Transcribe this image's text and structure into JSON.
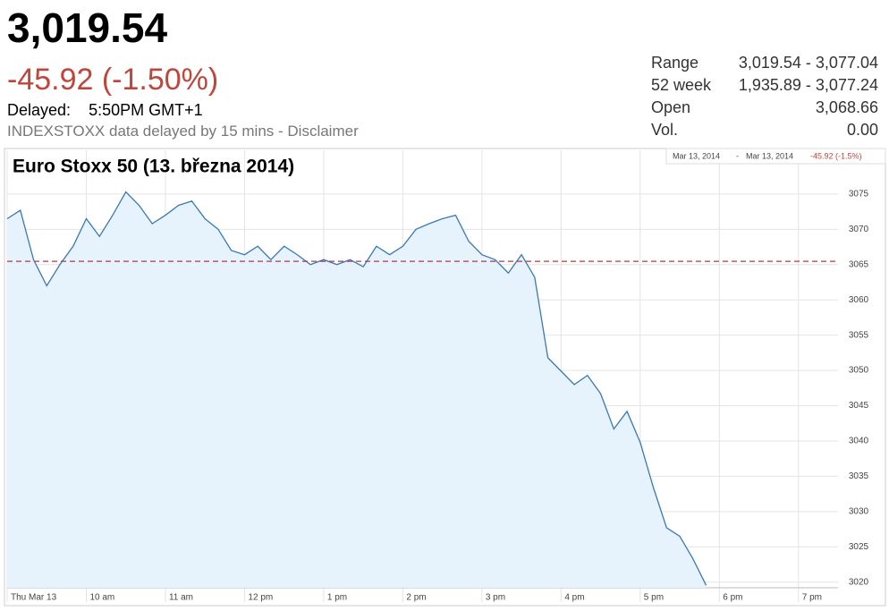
{
  "header": {
    "price": "3,019.54",
    "change": "-45.92 (-1.50%)",
    "delayed_label": "Delayed:",
    "delayed_time": "5:50PM GMT+1",
    "source": "INDEXSTOXX data delayed by 15 mins - Disclaimer"
  },
  "stats": [
    {
      "label": "Range",
      "value": "3,019.54 - 3,077.04"
    },
    {
      "label": "52 week",
      "value": "1,935.89 - 3,077.24"
    },
    {
      "label": "Open",
      "value": "3,068.66"
    },
    {
      "label": "Vol.",
      "value": "0.00"
    }
  ],
  "chart_data": {
    "type": "line",
    "title": "Euro Stoxx 50 (13. března 2014)",
    "range_box": {
      "from": "Mar 13, 2014",
      "separator": "-",
      "to": "Mar 13, 2014",
      "change": "-45.92 (-1.5%)"
    },
    "categories": [
      "Thu Mar 13",
      null,
      null,
      null,
      null,
      null,
      "10 am",
      null,
      null,
      null,
      null,
      null,
      "11 am",
      null,
      null,
      null,
      null,
      null,
      "12 pm",
      null,
      null,
      null,
      null,
      null,
      "1 pm",
      null,
      null,
      null,
      null,
      null,
      "2 pm",
      null,
      null,
      null,
      null,
      null,
      "3 pm",
      null,
      null,
      null,
      null,
      null,
      "4 pm",
      null,
      null,
      null,
      null,
      null,
      "5 pm",
      null,
      null,
      null,
      null,
      null,
      "6 pm",
      null,
      null,
      null,
      null,
      null,
      "7 pm",
      null,
      null,
      null
    ],
    "series": [
      {
        "color": "#3b78b5",
        "fill": "#e6f3fc",
        "values": [
          3071.5,
          3072.7,
          3065.7,
          3062,
          3065,
          3067.6,
          3071.5,
          3069,
          3072,
          3075.3,
          3073.4,
          3070.8,
          3072,
          3073.4,
          3074,
          3071.5,
          3070,
          3067,
          3066.4,
          3067.6,
          3065.7,
          3067.6,
          3066.4,
          3065,
          3065.7,
          3065,
          3065.7,
          3064.7,
          3067.6,
          3066.4,
          3067.6,
          3070,
          3070.8,
          3071.5,
          3072,
          3068.3,
          3066.4,
          3065.7,
          3063.8,
          3066.4,
          3063.2,
          3051.8,
          3049.9,
          3048,
          3049.3,
          3046.7,
          3041.7,
          3044.2,
          3039.8,
          3033.4,
          3027.7,
          3026.5,
          3023.3,
          3019.54,
          null,
          null,
          null,
          null,
          null,
          null,
          null,
          null,
          null,
          null
        ]
      }
    ],
    "reference_line": {
      "value": 3065.46,
      "color": "#b03a48"
    },
    "ylim": [
      3019.2,
      3081.2
    ],
    "yticks": [
      3020,
      3025,
      3030,
      3035,
      3040,
      3045,
      3050,
      3055,
      3060,
      3065,
      3070,
      3075
    ],
    "grid": true
  }
}
